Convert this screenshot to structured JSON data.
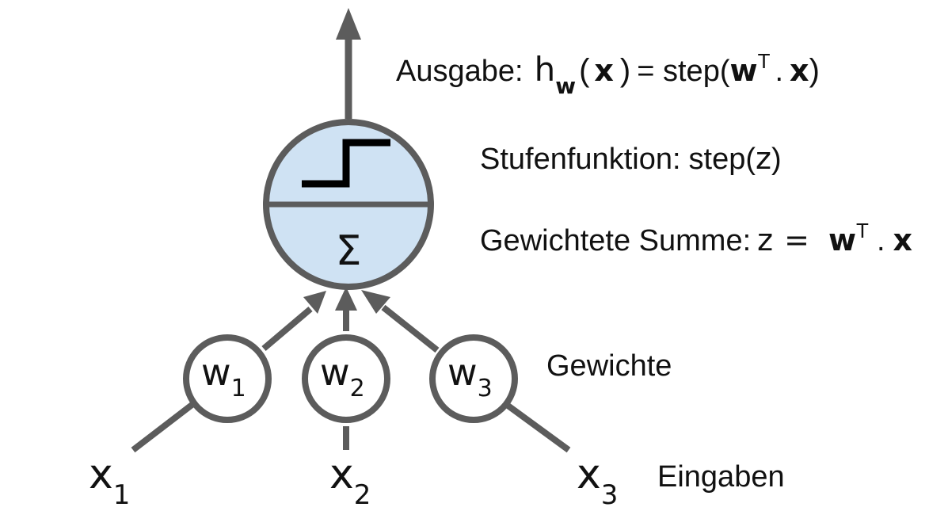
{
  "colors": {
    "stroke": "#5c5c5c",
    "neuron_fill": "#cfe2f3",
    "step_line": "#000000",
    "text": "#111111",
    "background": "#ffffff"
  },
  "neuron": {
    "summation_symbol": "Σ",
    "step_icon": "step-function-icon"
  },
  "annotations": {
    "output": {
      "label": "Ausgabe:",
      "h": "h",
      "h_sub": "w",
      "open_paren": "(",
      "x": "x",
      "close_paren": ")",
      "eq_step": "= step(",
      "w": "w",
      "sup": "T",
      "dot": ".",
      "x2": "x",
      "end_paren": ")"
    },
    "step": {
      "label": "Stufenfunktion:",
      "func": "step(",
      "var": "z",
      "end_paren": ")"
    },
    "weighted_sum": {
      "label": "Gewichtete Summe:",
      "z": "z",
      "eq": "=",
      "w": "w",
      "sup": "T",
      "dot": ".",
      "x": "x"
    },
    "weights_label": "Gewichte",
    "inputs_label": "Eingaben"
  },
  "weights": [
    {
      "base": "w",
      "sub": "1"
    },
    {
      "base": "w",
      "sub": "2"
    },
    {
      "base": "w",
      "sub": "3"
    }
  ],
  "inputs": [
    {
      "base": "x",
      "sub": "1"
    },
    {
      "base": "x",
      "sub": "2"
    },
    {
      "base": "x",
      "sub": "3"
    }
  ]
}
